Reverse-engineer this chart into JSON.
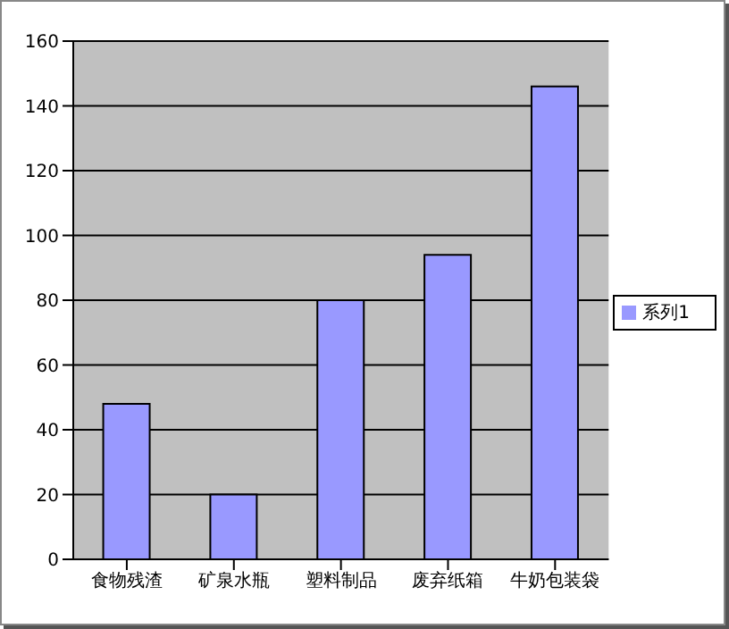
{
  "chart_data": {
    "type": "bar",
    "categories": [
      "食物残渣",
      "矿泉水瓶",
      "塑料制品",
      "废弃纸箱",
      "牛奶包装袋"
    ],
    "series": [
      {
        "name": "系列1",
        "color": "#9999ff",
        "values": [
          48,
          20,
          80,
          94,
          146
        ]
      }
    ],
    "ylim": [
      0,
      160
    ],
    "yticks": [
      0,
      20,
      40,
      60,
      80,
      100,
      120,
      140,
      160
    ],
    "grid": "y",
    "legend": "right"
  }
}
